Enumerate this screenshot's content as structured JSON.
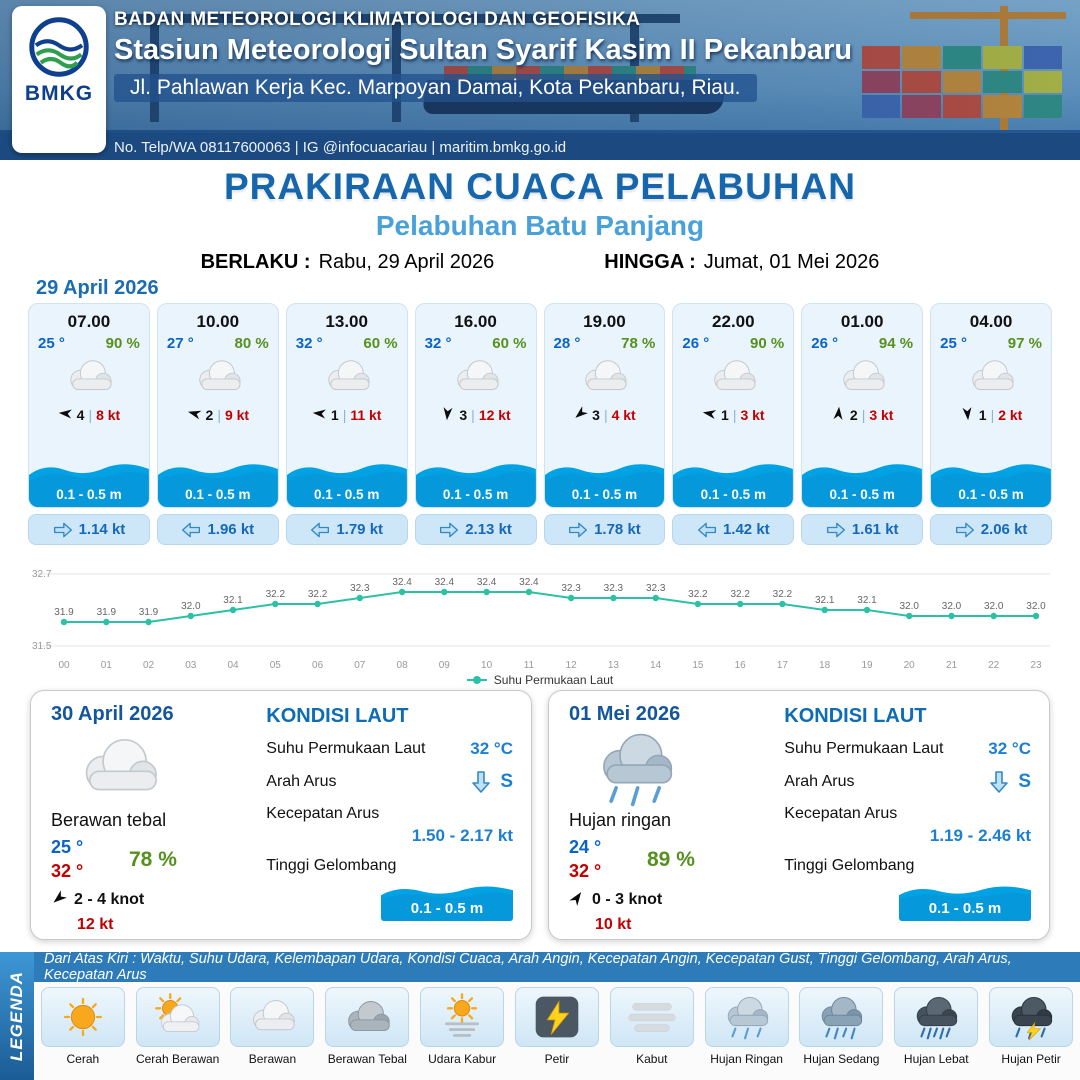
{
  "header": {
    "logo_label": "BMKG",
    "agency": "BADAN METEOROLOGI KLIMATOLOGI DAN GEOFISIKA",
    "station": "Stasiun Meteorologi Sultan Syarif Kasim II Pekanbaru",
    "address": "Jl. Pahlawan Kerja Kec. Marpoyan Damai, Kota Pekanbaru, Riau.",
    "contact": "No. Telp/WA 08117600063 | IG @infocuacariau | maritim.bmkg.go.id"
  },
  "title": {
    "main": "PRAKIRAAN CUACA PELABUHAN",
    "subtitle": "Pelabuhan Batu Panjang",
    "valid_from_label": "BERLAKU :",
    "valid_from": "Rabu, 29 April 2026",
    "valid_to_label": "HINGGA :",
    "valid_to": "Jumat, 01 Mei 2026"
  },
  "forecast": {
    "date": "29 April 2026",
    "cards": [
      {
        "time": "07.00",
        "temp": "25 °",
        "humidity": "90 %",
        "weather_icon": "cloudy",
        "wind_dir_deg": 185,
        "wind_value": "4",
        "wind_speed": "8 kt",
        "wave": "0.1 - 0.5 m",
        "current_dir": "right",
        "current": "1.14 kt"
      },
      {
        "time": "10.00",
        "temp": "27 °",
        "humidity": "80 %",
        "weather_icon": "cloudy",
        "wind_dir_deg": 195,
        "wind_value": "2",
        "wind_speed": "9 kt",
        "wave": "0.1 - 0.5 m",
        "current_dir": "left",
        "current": "1.96 kt"
      },
      {
        "time": "13.00",
        "temp": "32 °",
        "humidity": "60 %",
        "weather_icon": "cloudy",
        "wind_dir_deg": 185,
        "wind_value": "1",
        "wind_speed": "11 kt",
        "wave": "0.1 - 0.5 m",
        "current_dir": "left",
        "current": "1.79 kt"
      },
      {
        "time": "16.00",
        "temp": "32 °",
        "humidity": "60 %",
        "weather_icon": "cloudy",
        "wind_dir_deg": 95,
        "wind_value": "3",
        "wind_speed": "12 kt",
        "wave": "0.1 - 0.5 m",
        "current_dir": "right",
        "current": "2.13 kt"
      },
      {
        "time": "19.00",
        "temp": "28 °",
        "humidity": "78 %",
        "weather_icon": "cloudy",
        "wind_dir_deg": 140,
        "wind_value": "3",
        "wind_speed": "4 kt",
        "wave": "0.1 - 0.5 m",
        "current_dir": "right",
        "current": "1.78 kt"
      },
      {
        "time": "22.00",
        "temp": "26 °",
        "humidity": "90 %",
        "weather_icon": "cloudy",
        "wind_dir_deg": 190,
        "wind_value": "1",
        "wind_speed": "3 kt",
        "wave": "0.1 - 0.5 m",
        "current_dir": "left",
        "current": "1.42 kt"
      },
      {
        "time": "01.00",
        "temp": "26 °",
        "humidity": "94 %",
        "weather_icon": "cloudy",
        "wind_dir_deg": 275,
        "wind_value": "2",
        "wind_speed": "3 kt",
        "wave": "0.1 - 0.5 m",
        "current_dir": "right",
        "current": "1.61 kt"
      },
      {
        "time": "04.00",
        "temp": "25 °",
        "humidity": "97 %",
        "weather_icon": "cloudy",
        "wind_dir_deg": 85,
        "wind_value": "1",
        "wind_speed": "2 kt",
        "wave": "0.1 - 0.5 m",
        "current_dir": "right",
        "current": "2.06 kt"
      }
    ]
  },
  "chart_data": {
    "type": "line",
    "x": [
      "00",
      "01",
      "02",
      "03",
      "04",
      "05",
      "06",
      "07",
      "08",
      "09",
      "10",
      "11",
      "12",
      "13",
      "14",
      "15",
      "16",
      "17",
      "18",
      "19",
      "20",
      "21",
      "22",
      "23"
    ],
    "series": [
      {
        "name": "Suhu Permukaan Laut",
        "values": [
          31.9,
          31.9,
          31.9,
          32.0,
          32.1,
          32.2,
          32.2,
          32.3,
          32.4,
          32.4,
          32.4,
          32.4,
          32.3,
          32.3,
          32.3,
          32.2,
          32.2,
          32.2,
          32.1,
          32.1,
          32.0,
          32.0,
          32.0,
          32.0
        ]
      }
    ],
    "ylim": [
      31.5,
      32.7
    ],
    "line_color": "#2cc1a5",
    "legend": "Suhu Permukaan Laut",
    "legend_position": "bottom",
    "grid": false
  },
  "daily": [
    {
      "date": "30 April 2026",
      "weather_icon": "cloudy",
      "condition": "Berawan tebal",
      "temp_min": "25 °",
      "temp_max": "32 °",
      "humidity": "78 %",
      "wind_dir_deg": 140,
      "wind_range": "2  - 4 knot",
      "gust": "12 kt",
      "sea": {
        "title": "KONDISI LAUT",
        "sst_label": "Suhu Permukaan Laut",
        "sst": "32 °C",
        "current_dir_label": "Arah Arus",
        "current_dir": "S",
        "current_speed_label": "Kecepatan Arus",
        "current_speed": "1.50  - 2.17 kt",
        "wave_label": "Tinggi Gelombang",
        "wave": "0.1 - 0.5 m"
      }
    },
    {
      "date": "01 Mei 2026",
      "weather_icon": "light-rain",
      "condition": "Hujan ringan",
      "temp_min": "24 °",
      "temp_max": "32 °",
      "humidity": "89 %",
      "wind_dir_deg": 305,
      "wind_range": "0  - 3 knot",
      "gust": "10 kt",
      "sea": {
        "title": "KONDISI LAUT",
        "sst_label": "Suhu Permukaan Laut",
        "sst": "32 °C",
        "current_dir_label": "Arah Arus",
        "current_dir": "S",
        "current_speed_label": "Kecepatan Arus",
        "current_speed": "1.19  - 2.46 kt",
        "wave_label": "Tinggi Gelombang",
        "wave": "0.1 - 0.5 m"
      }
    }
  ],
  "legend": {
    "note": "Dari Atas Kiri : Waktu, Suhu Udara, Kelembapan Udara, Kondisi Cuaca, Arah Angin, Kecepatan Angin, Kecepatan Gust, Tinggi Gelombang, Arah Arus, Kecepatan Arus",
    "side_label": "LEGENDA",
    "items": [
      {
        "label": "Cerah",
        "icon": "sunny"
      },
      {
        "label": "Cerah Berawan",
        "icon": "partly-cloudy"
      },
      {
        "label": "Berawan",
        "icon": "cloudy"
      },
      {
        "label": "Berawan Tebal",
        "icon": "overcast"
      },
      {
        "label": "Udara Kabur",
        "icon": "haze"
      },
      {
        "label": "Petir",
        "icon": "lightning"
      },
      {
        "label": "Kabut",
        "icon": "fog"
      },
      {
        "label": "Hujan Ringan",
        "icon": "light-rain"
      },
      {
        "label": "Hujan Sedang",
        "icon": "moderate-rain"
      },
      {
        "label": "Hujan Lebat",
        "icon": "heavy-rain"
      },
      {
        "label": "Hujan Petir",
        "icon": "thunderstorm"
      }
    ]
  }
}
